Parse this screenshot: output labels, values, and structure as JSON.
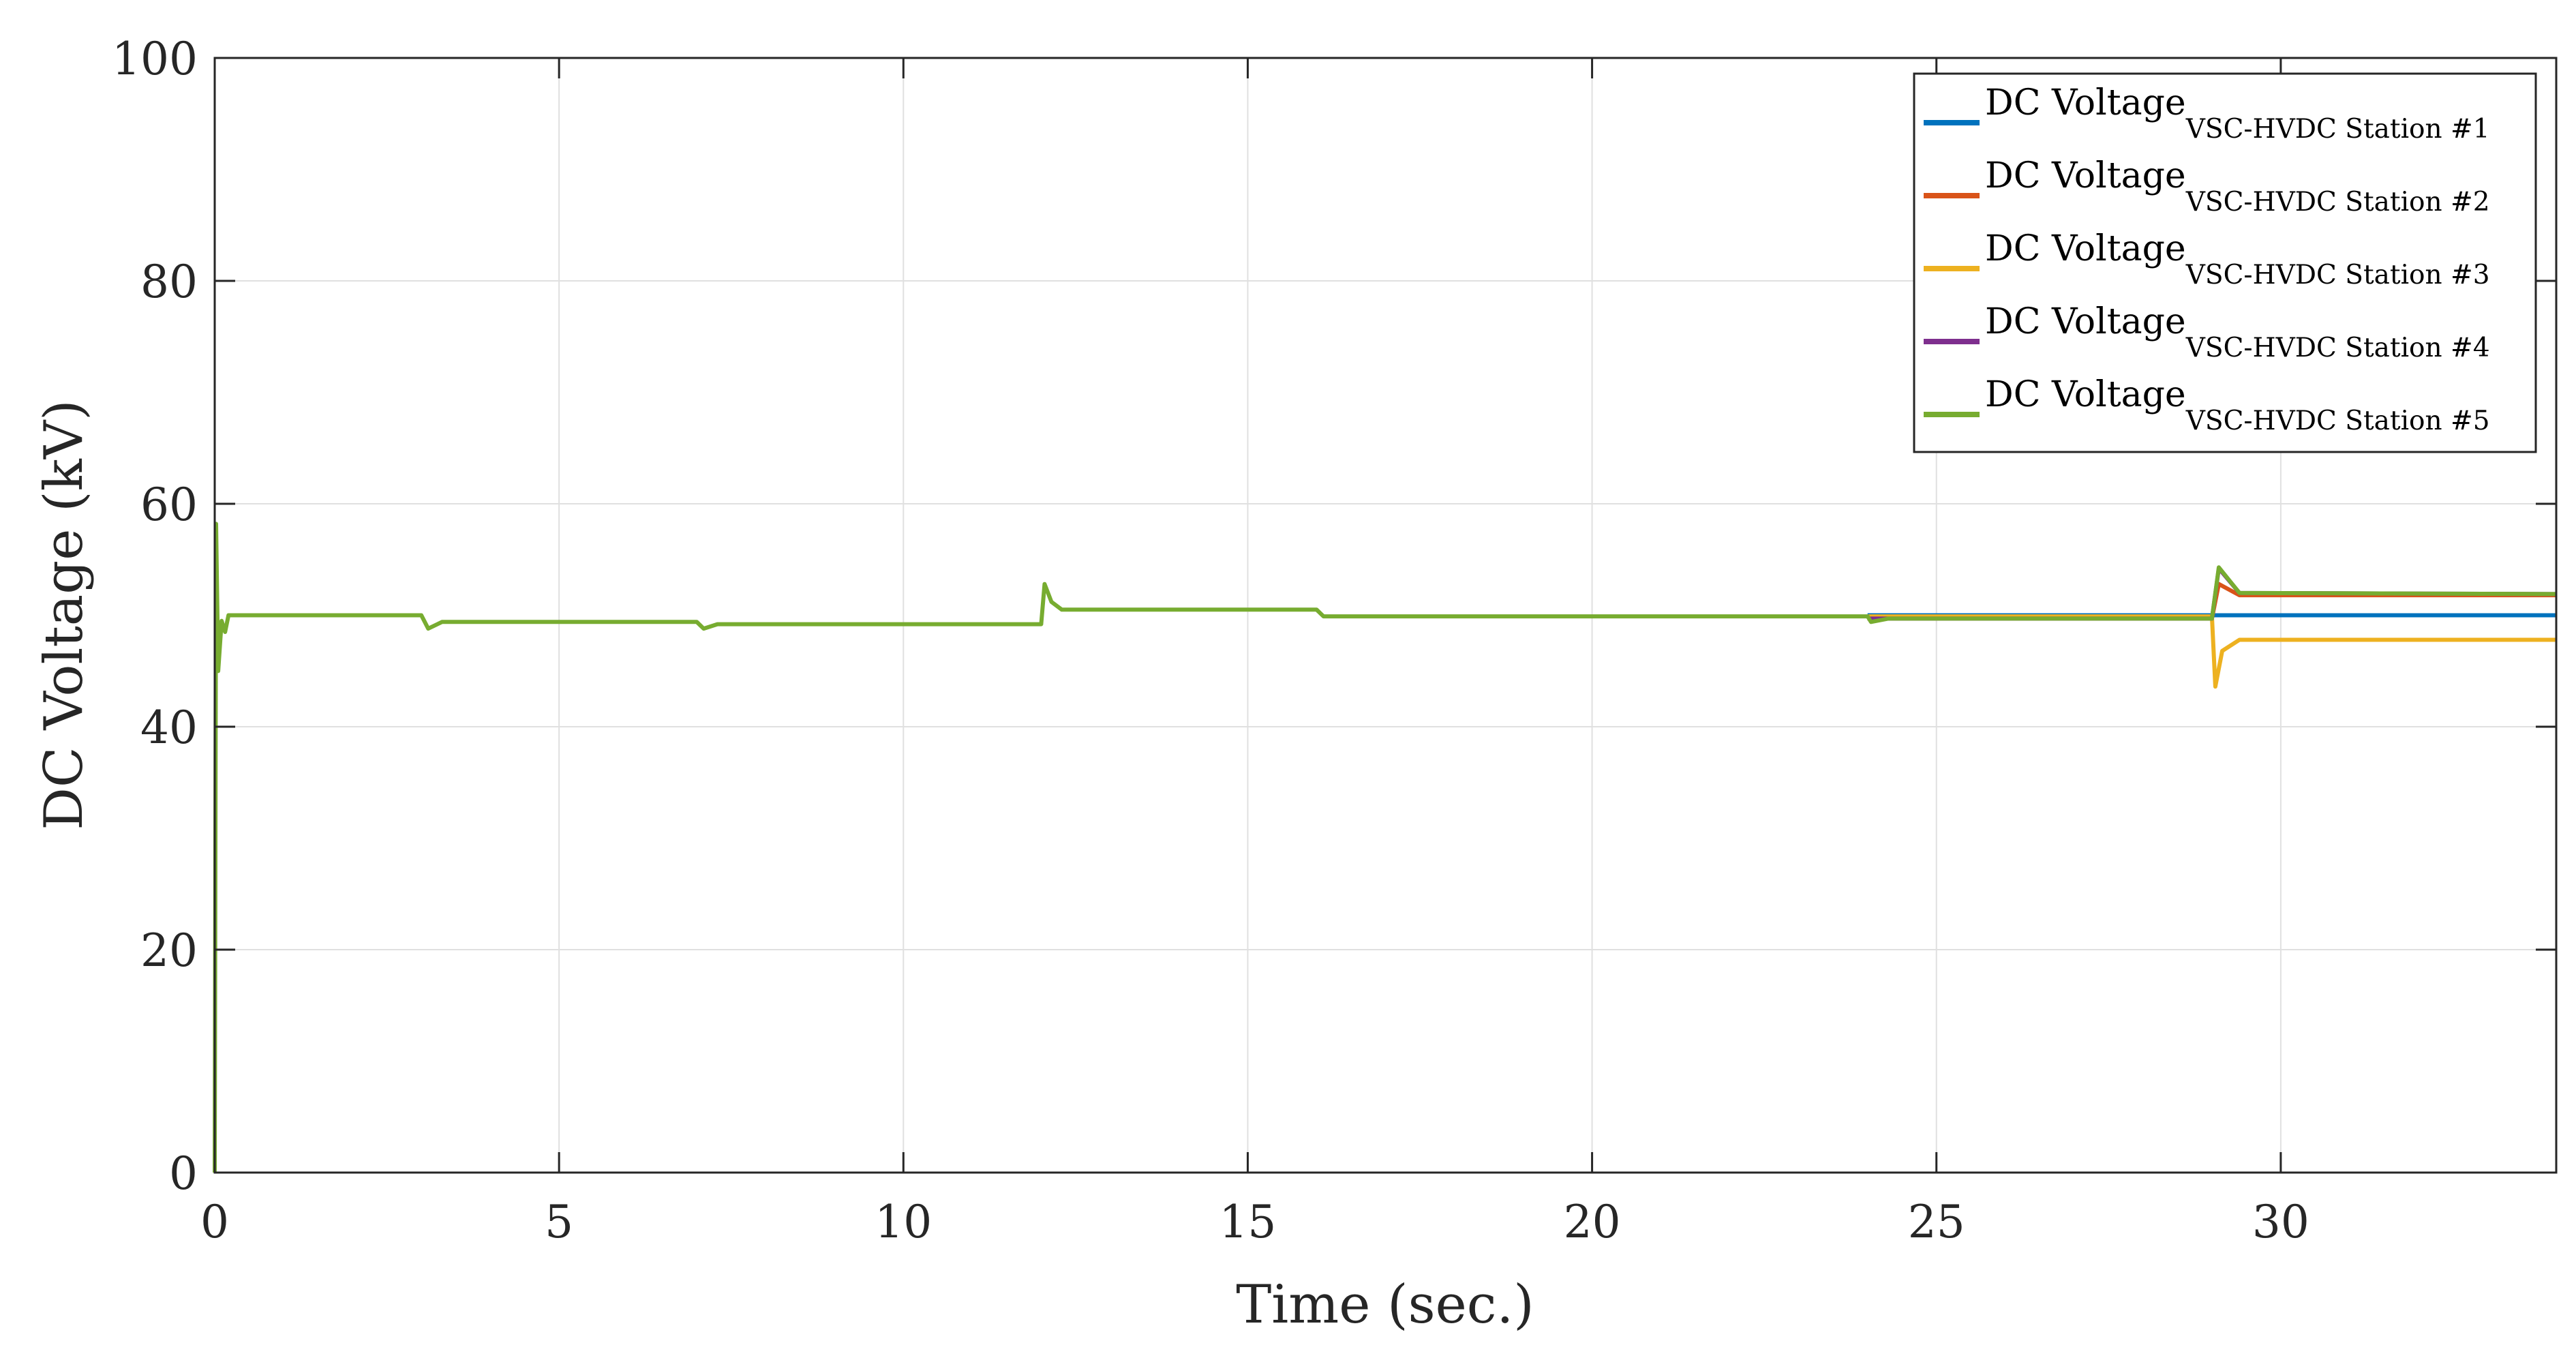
{
  "chart_data": {
    "type": "line",
    "title": "",
    "xlabel": "Time (sec.)",
    "ylabel": "DC Voltage (kV)",
    "xlim": [
      0,
      34
    ],
    "ylim": [
      0,
      100
    ],
    "xticks": [
      0,
      5,
      10,
      15,
      20,
      25,
      30
    ],
    "yticks": [
      0,
      20,
      40,
      60,
      80,
      100
    ],
    "grid": true,
    "legend_position": "top-right",
    "series": [
      {
        "name": "DC Voltage",
        "subscript": "VSC-HVDC Station #1",
        "color": "#0072BD",
        "points": [
          [
            24,
            50.0
          ],
          [
            24.3,
            50.0
          ],
          [
            29,
            50.0
          ],
          [
            29.2,
            50.0
          ],
          [
            34,
            50.0
          ]
        ]
      },
      {
        "name": "DC Voltage",
        "subscript": "VSC-HVDC Station #2",
        "color": "#D95319",
        "points": [
          [
            24,
            49.7
          ],
          [
            29,
            49.7
          ],
          [
            29.1,
            52.8
          ],
          [
            29.4,
            51.8
          ],
          [
            34,
            51.8
          ]
        ]
      },
      {
        "name": "DC Voltage",
        "subscript": "VSC-HVDC Station #3",
        "color": "#EDB120",
        "points": [
          [
            24,
            49.9
          ],
          [
            29,
            49.9
          ],
          [
            29.05,
            43.6
          ],
          [
            29.15,
            46.8
          ],
          [
            29.4,
            47.8
          ],
          [
            34,
            47.8
          ]
        ]
      },
      {
        "name": "DC Voltage",
        "subscript": "VSC-HVDC Station #4",
        "color": "#7E2F8E",
        "points": [
          [
            24,
            49.7
          ],
          [
            29,
            49.7
          ],
          [
            29.1,
            54.2
          ],
          [
            29.4,
            52.0
          ],
          [
            34,
            51.9
          ]
        ]
      },
      {
        "name": "DC Voltage",
        "subscript": "VSC-HVDC Station #5",
        "color": "#77AC30",
        "points": [
          [
            0,
            0
          ],
          [
            0.02,
            58.2
          ],
          [
            0.05,
            45
          ],
          [
            0.1,
            49.5
          ],
          [
            0.15,
            48.5
          ],
          [
            0.2,
            50
          ],
          [
            0.4,
            50
          ],
          [
            3.0,
            50
          ],
          [
            3.1,
            48.8
          ],
          [
            3.3,
            49.4
          ],
          [
            7.0,
            49.4
          ],
          [
            7.1,
            48.8
          ],
          [
            7.3,
            49.2
          ],
          [
            12.0,
            49.2
          ],
          [
            12.05,
            52.8
          ],
          [
            12.15,
            51.2
          ],
          [
            12.3,
            50.5
          ],
          [
            16.0,
            50.5
          ],
          [
            16.1,
            49.9
          ],
          [
            24.0,
            49.9
          ],
          [
            24.05,
            49.4
          ],
          [
            24.3,
            49.7
          ],
          [
            29.0,
            49.7
          ],
          [
            29.1,
            54.3
          ],
          [
            29.4,
            52.0
          ],
          [
            34,
            51.9
          ]
        ]
      }
    ]
  }
}
